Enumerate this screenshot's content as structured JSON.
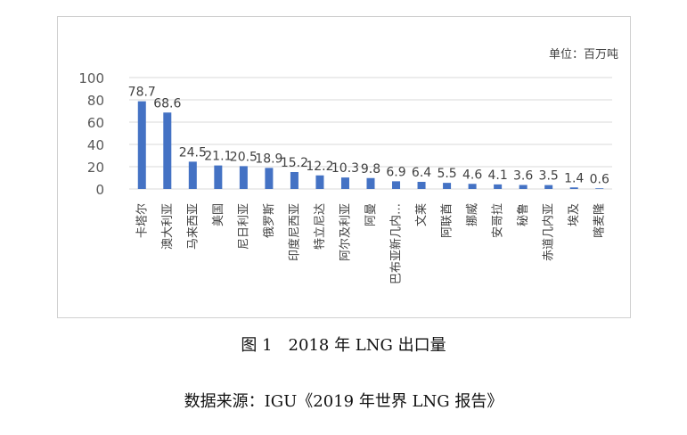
{
  "chart_data": {
    "type": "bar",
    "unit": "单位：百万吨",
    "categories": [
      "卡塔尔",
      "澳大利亚",
      "马来西亚",
      "美国",
      "尼日利亚",
      "俄罗斯",
      "印度尼西亚",
      "特立尼达",
      "阿尔及利亚",
      "阿曼",
      "巴布亚新几内…",
      "文莱",
      "阿联酋",
      "挪威",
      "安哥拉",
      "秘鲁",
      "赤道几内亚",
      "埃及",
      "喀麦隆"
    ],
    "values": [
      78.7,
      68.6,
      24.5,
      21.1,
      20.5,
      18.9,
      15.2,
      12.2,
      10.3,
      9.8,
      6.9,
      6.4,
      5.5,
      4.6,
      4.1,
      3.6,
      3.5,
      1.4,
      0.6
    ],
    "data_labels": [
      "78.7",
      "68.6",
      "24.5",
      "21.1",
      "20.5",
      "18.9",
      "15.2",
      "12.2",
      "10.3",
      "9.8",
      "6.9",
      "6.4",
      "5.5",
      "4.6",
      "4.1",
      "3.6",
      "3.5",
      "1.4",
      "0.6"
    ],
    "yticks": [
      "0",
      "20",
      "40",
      "60",
      "80",
      "100"
    ],
    "ylim": [
      0,
      100
    ],
    "grid": true,
    "bar_color": "#4472c4"
  },
  "caption": "图 1　2018 年 LNG 出口量",
  "source": "数据来源：IGU《2019 年世界 LNG 报告》"
}
